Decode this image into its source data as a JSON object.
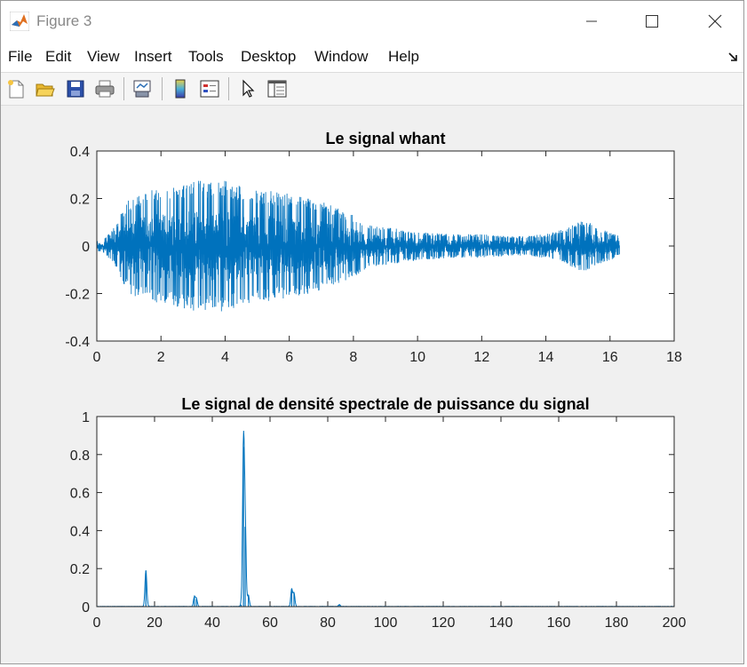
{
  "window": {
    "title": "Figure 3",
    "controls": [
      "minimize",
      "maximize",
      "close"
    ]
  },
  "menubar": {
    "items": [
      "File",
      "Edit",
      "View",
      "Insert",
      "Tools",
      "Desktop",
      "Window",
      "Help"
    ]
  },
  "toolbar": {
    "buttons": [
      "new-figure-icon",
      "open-file-icon",
      "save-icon",
      "print-icon",
      "link-plot-icon",
      "colorbar-icon",
      "legend-icon",
      "edit-plot-arrow-icon",
      "property-inspector-icon"
    ]
  },
  "colors": {
    "line": "#0072BD",
    "axes_bg": "#ffffff",
    "figure_bg": "#f0f0f0"
  },
  "chart_data": [
    {
      "type": "line",
      "title": "Le signal whant",
      "xlabel": "",
      "ylabel": "",
      "xlim": [
        0,
        18
      ],
      "ylim": [
        -0.4,
        0.4
      ],
      "xticks": [
        "0",
        "2",
        "4",
        "6",
        "8",
        "10",
        "12",
        "14",
        "16",
        "18"
      ],
      "yticks": [
        "-0.4",
        "-0.2",
        "0",
        "0.2",
        "0.4"
      ],
      "grid": false,
      "envelope": {
        "t": [
          0,
          0.3,
          0.6,
          0.9,
          1.2,
          1.6,
          2.0,
          2.5,
          3.0,
          3.5,
          4.0,
          4.5,
          5.0,
          5.5,
          6.0,
          6.5,
          7.0,
          7.5,
          8.0,
          8.5,
          9.0,
          9.5,
          10,
          11,
          12,
          13,
          14,
          14.5,
          15,
          15.3,
          15.6,
          16.0,
          16.3
        ],
        "amp": [
          0.02,
          0.04,
          0.09,
          0.18,
          0.22,
          0.23,
          0.25,
          0.26,
          0.28,
          0.27,
          0.28,
          0.25,
          0.24,
          0.23,
          0.22,
          0.21,
          0.19,
          0.16,
          0.13,
          0.09,
          0.08,
          0.07,
          0.06,
          0.05,
          0.05,
          0.04,
          0.05,
          0.07,
          0.1,
          0.11,
          0.08,
          0.06,
          0.04
        ]
      },
      "end_time": 16.3
    },
    {
      "type": "line",
      "title": "Le signal de densité spectrale de puissance du signal",
      "xlabel": "",
      "ylabel": "",
      "xlim": [
        0,
        200
      ],
      "ylim": [
        0,
        1
      ],
      "xticks": [
        "0",
        "20",
        "40",
        "60",
        "80",
        "100",
        "120",
        "140",
        "160",
        "180",
        "200"
      ],
      "yticks": [
        "0",
        "0.2",
        "0.4",
        "0.6",
        "0.8",
        "1"
      ],
      "grid": false,
      "peaks": [
        {
          "f": 17.0,
          "value": 0.19
        },
        {
          "f": 33.8,
          "value": 0.05
        },
        {
          "f": 34.5,
          "value": 0.04
        },
        {
          "f": 50.0,
          "value": 0.01
        },
        {
          "f": 50.8,
          "value": 0.84
        },
        {
          "f": 51.4,
          "value": 0.42
        },
        {
          "f": 52.5,
          "value": 0.06
        },
        {
          "f": 67.5,
          "value": 0.09
        },
        {
          "f": 68.3,
          "value": 0.07
        },
        {
          "f": 84.0,
          "value": 0.01
        }
      ]
    }
  ]
}
